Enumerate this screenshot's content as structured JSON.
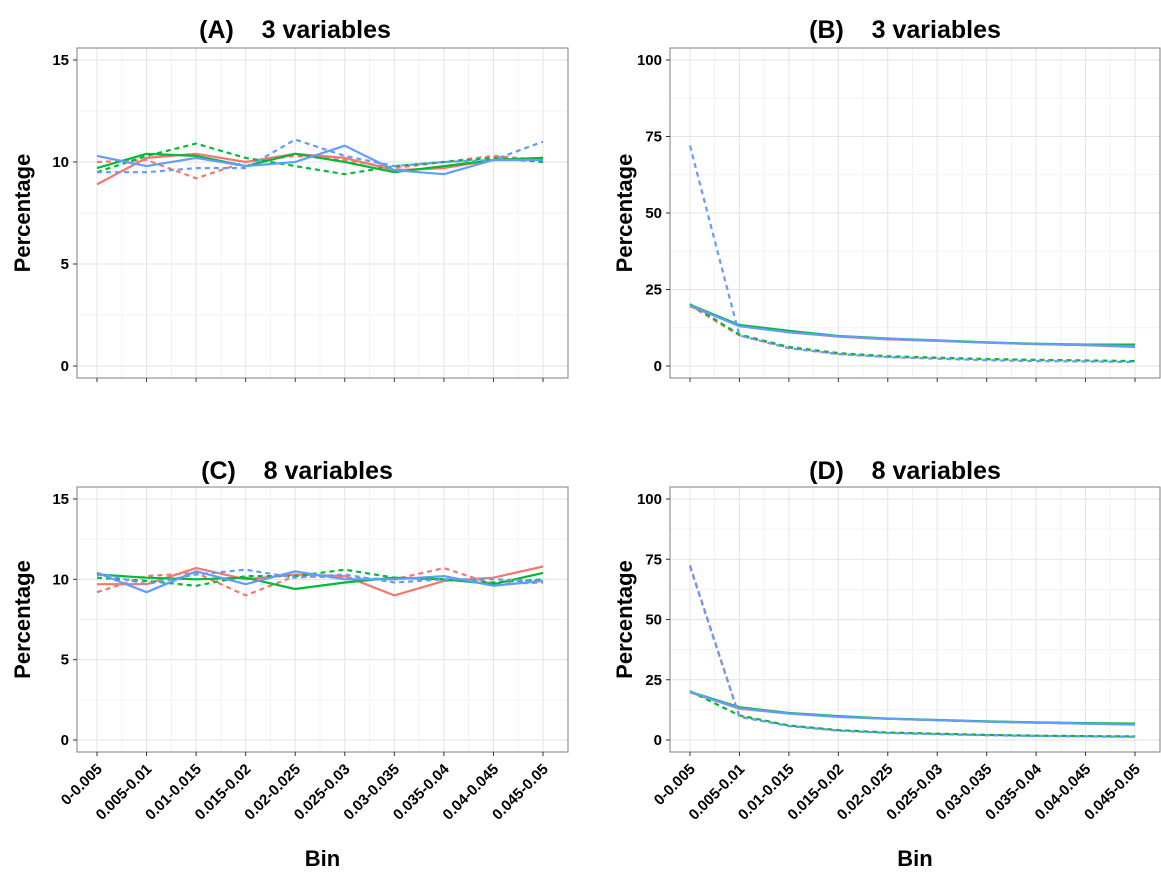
{
  "chart_data": [
    {
      "type": "line",
      "title": "(A)    3 variables",
      "ylabel": "Percentage",
      "xlabel": "",
      "ylim": [
        0,
        15
      ],
      "yticks": [
        0,
        5,
        10,
        15
      ],
      "categories": [
        "0-0.005",
        "0.005-0.01",
        "0.01-0.015",
        "0.015-0.02",
        "0.02-0.025",
        "0.025-0.03",
        "0.03-0.035",
        "0.035-0.04",
        "0.04-0.045",
        "0.045-0.05"
      ],
      "show_x_ticks": false,
      "grid": true,
      "series": [
        {
          "color": "#F8766D",
          "dash": false,
          "values": [
            8.9,
            10.2,
            10.4,
            10.0,
            10.4,
            10.2,
            9.6,
            9.7,
            10.1,
            10.2
          ]
        },
        {
          "color": "#F8766D",
          "dash": true,
          "values": [
            10.0,
            10.1,
            9.2,
            10.0,
            10.3,
            10.1,
            9.7,
            10.0,
            10.3,
            10.1
          ]
        },
        {
          "color": "#00BA38",
          "dash": false,
          "values": [
            9.7,
            10.4,
            10.3,
            9.8,
            10.4,
            10.0,
            9.5,
            9.8,
            10.1,
            10.2
          ]
        },
        {
          "color": "#00BA38",
          "dash": true,
          "values": [
            9.5,
            10.3,
            10.9,
            10.2,
            9.8,
            9.4,
            9.8,
            10.0,
            10.2,
            10.0
          ]
        },
        {
          "color": "#619CFF",
          "dash": false,
          "values": [
            10.3,
            9.8,
            10.2,
            9.8,
            10.0,
            10.8,
            9.6,
            9.4,
            10.1,
            10.1
          ]
        },
        {
          "color": "#619CFF",
          "dash": true,
          "values": [
            9.5,
            9.5,
            9.7,
            9.7,
            11.1,
            10.3,
            9.8,
            10.0,
            10.1,
            11.0
          ]
        }
      ]
    },
    {
      "type": "line",
      "title": "(B)    3 variables",
      "ylabel": "Percentage",
      "xlabel": "",
      "ylim": [
        0,
        100
      ],
      "yticks": [
        0,
        25,
        50,
        75,
        100
      ],
      "categories": [
        "0-0.005",
        "0.005-0.01",
        "0.01-0.015",
        "0.015-0.02",
        "0.02-0.025",
        "0.025-0.03",
        "0.03-0.035",
        "0.035-0.04",
        "0.04-0.045",
        "0.045-0.05"
      ],
      "show_x_ticks": false,
      "grid": true,
      "series": [
        {
          "color": "#F8766D",
          "dash": false,
          "values": [
            19.5,
            13.2,
            11.0,
            9.6,
            8.7,
            8.2,
            7.6,
            7.2,
            6.8,
            6.2
          ]
        },
        {
          "color": "#F8766D",
          "dash": true,
          "values": [
            19.8,
            10.0,
            6.0,
            4.0,
            3.0,
            2.6,
            2.2,
            2.0,
            1.8,
            1.6
          ]
        },
        {
          "color": "#00BA38",
          "dash": false,
          "values": [
            20.0,
            13.4,
            11.5,
            9.8,
            9.0,
            8.4,
            7.7,
            7.3,
            7.0,
            7.0
          ]
        },
        {
          "color": "#00BA38",
          "dash": true,
          "values": [
            20.2,
            10.3,
            6.2,
            4.2,
            3.2,
            2.7,
            2.3,
            2.0,
            1.8,
            1.6
          ]
        },
        {
          "color": "#619CFF",
          "dash": false,
          "values": [
            19.8,
            13.0,
            11.0,
            9.7,
            8.9,
            8.3,
            7.6,
            7.2,
            6.8,
            6.5
          ]
        },
        {
          "color": "#619CFF",
          "dash": true,
          "values": [
            72.0,
            10.0,
            5.8,
            3.9,
            2.9,
            2.4,
            1.9,
            1.6,
            1.5,
            1.3
          ]
        }
      ]
    },
    {
      "type": "line",
      "title": "(C)    8 variables",
      "ylabel": "Percentage",
      "xlabel": "Bin",
      "ylim": [
        0,
        15
      ],
      "yticks": [
        0,
        5,
        10,
        15
      ],
      "categories": [
        "0-0.005",
        "0.005-0.01",
        "0.01-0.015",
        "0.015-0.02",
        "0.02-0.025",
        "0.025-0.03",
        "0.03-0.035",
        "0.035-0.04",
        "0.04-0.045",
        "0.045-0.05"
      ],
      "show_x_ticks": true,
      "grid": true,
      "series": [
        {
          "color": "#F8766D",
          "dash": false,
          "values": [
            9.7,
            9.7,
            10.7,
            10.0,
            10.3,
            10.2,
            9.0,
            9.9,
            10.1,
            10.8
          ]
        },
        {
          "color": "#F8766D",
          "dash": true,
          "values": [
            9.2,
            10.2,
            10.4,
            9.0,
            10.2,
            10.1,
            10.0,
            10.7,
            9.7,
            9.8
          ]
        },
        {
          "color": "#00BA38",
          "dash": false,
          "values": [
            10.3,
            10.1,
            10.0,
            10.1,
            9.4,
            9.8,
            10.1,
            10.0,
            9.7,
            10.4
          ]
        },
        {
          "color": "#00BA38",
          "dash": true,
          "values": [
            10.1,
            9.9,
            9.6,
            10.2,
            10.2,
            10.6,
            10.1,
            10.0,
            9.8,
            10.0
          ]
        },
        {
          "color": "#619CFF",
          "dash": false,
          "values": [
            10.4,
            9.2,
            10.5,
            9.7,
            10.5,
            10.0,
            10.0,
            10.2,
            9.6,
            9.9
          ]
        },
        {
          "color": "#619CFF",
          "dash": true,
          "values": [
            10.4,
            9.7,
            10.3,
            10.6,
            10.1,
            10.3,
            9.8,
            10.0,
            10.0,
            9.9
          ]
        }
      ]
    },
    {
      "type": "line",
      "title": "(D)    8 variables",
      "ylabel": "Percentage",
      "xlabel": "Bin",
      "ylim": [
        0,
        100
      ],
      "yticks": [
        0,
        25,
        50,
        75,
        100
      ],
      "categories": [
        "0-0.005",
        "0.005-0.01",
        "0.01-0.015",
        "0.015-0.02",
        "0.02-0.025",
        "0.025-0.03",
        "0.03-0.035",
        "0.035-0.04",
        "0.04-0.045",
        "0.045-0.05"
      ],
      "show_x_ticks": true,
      "grid": true,
      "series": [
        {
          "color": "#F8766D",
          "dash": false,
          "values": [
            19.8,
            13.0,
            11.0,
            9.7,
            8.8,
            8.2,
            7.6,
            7.2,
            6.8,
            6.5
          ]
        },
        {
          "color": "#F8766D",
          "dash": true,
          "values": [
            72.5,
            9.8,
            5.8,
            3.9,
            3.0,
            2.5,
            2.0,
            1.7,
            1.5,
            1.4
          ]
        },
        {
          "color": "#00BA38",
          "dash": false,
          "values": [
            20.0,
            13.6,
            11.2,
            9.9,
            8.9,
            8.3,
            7.7,
            7.3,
            7.0,
            6.8
          ]
        },
        {
          "color": "#00BA38",
          "dash": true,
          "values": [
            20.2,
            10.2,
            6.0,
            4.1,
            3.1,
            2.6,
            2.1,
            1.8,
            1.6,
            1.5
          ]
        },
        {
          "color": "#619CFF",
          "dash": false,
          "values": [
            19.9,
            13.2,
            11.0,
            9.6,
            8.8,
            8.2,
            7.6,
            7.2,
            6.8,
            6.4
          ]
        },
        {
          "color": "#619CFF",
          "dash": true,
          "values": [
            72.0,
            9.6,
            5.8,
            3.9,
            2.9,
            2.4,
            2.0,
            1.7,
            1.5,
            1.3
          ]
        }
      ]
    }
  ]
}
